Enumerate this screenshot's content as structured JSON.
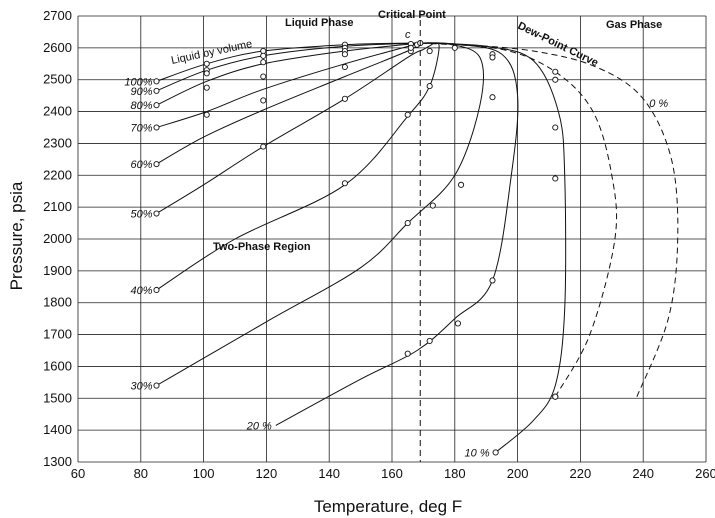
{
  "chart_data": {
    "type": "line",
    "xlabel": "Temperature, deg F",
    "ylabel": "Pressure, psia",
    "xlim": [
      60,
      260
    ],
    "ylim": [
      1300,
      2700
    ],
    "xticks": [
      60,
      80,
      100,
      120,
      140,
      160,
      180,
      200,
      220,
      240,
      260
    ],
    "yticks": [
      1300,
      1400,
      1500,
      1600,
      1700,
      1800,
      1900,
      2000,
      2100,
      2200,
      2300,
      2400,
      2500,
      2600,
      2700
    ],
    "grid": true,
    "critical_point": {
      "label": "c",
      "temperature": 169,
      "pressure": 2615
    },
    "critical_temperature_line": 169,
    "series": [
      {
        "name": "100%",
        "style": "solid",
        "points": [
          [
            85,
            2495
          ],
          [
            101,
            2550
          ],
          [
            119,
            2590
          ],
          [
            145,
            2610
          ],
          [
            165,
            2615
          ],
          [
            169,
            2615
          ]
        ],
        "markers": [
          [
            85,
            2495
          ],
          [
            101,
            2550
          ],
          [
            119,
            2590
          ],
          [
            145,
            2610
          ],
          [
            166,
            2612
          ]
        ]
      },
      {
        "name": "90%",
        "style": "solid",
        "points": [
          [
            85,
            2465
          ],
          [
            101,
            2530
          ],
          [
            119,
            2575
          ],
          [
            145,
            2605
          ],
          [
            169,
            2615
          ]
        ],
        "markers": [
          [
            85,
            2465
          ],
          [
            101,
            2530
          ],
          [
            119,
            2575
          ],
          [
            145,
            2600
          ]
        ]
      },
      {
        "name": "80%",
        "style": "solid",
        "points": [
          [
            85,
            2420
          ],
          [
            101,
            2495
          ],
          [
            119,
            2550
          ],
          [
            145,
            2590
          ],
          [
            169,
            2615
          ]
        ],
        "markers": [
          [
            85,
            2420
          ],
          [
            101,
            2520
          ],
          [
            119,
            2555
          ],
          [
            145,
            2590
          ]
        ]
      },
      {
        "name": "70%",
        "style": "solid",
        "points": [
          [
            85,
            2350
          ],
          [
            101,
            2400
          ],
          [
            119,
            2470
          ],
          [
            145,
            2550
          ],
          [
            169,
            2615
          ]
        ],
        "markers": [
          [
            85,
            2350
          ],
          [
            101,
            2475
          ],
          [
            119,
            2510
          ],
          [
            145,
            2580
          ],
          [
            166,
            2590
          ]
        ]
      },
      {
        "name": "60%",
        "style": "solid",
        "points": [
          [
            85,
            2235
          ],
          [
            100,
            2320
          ],
          [
            119,
            2405
          ],
          [
            145,
            2510
          ],
          [
            165,
            2590
          ],
          [
            169,
            2615
          ]
        ],
        "markers": [
          [
            85,
            2235
          ],
          [
            101,
            2390
          ],
          [
            119,
            2435
          ],
          [
            145,
            2540
          ],
          [
            166,
            2600
          ]
        ]
      },
      {
        "name": "50%",
        "style": "solid",
        "points": [
          [
            85,
            2080
          ],
          [
            100,
            2170
          ],
          [
            119,
            2290
          ],
          [
            145,
            2440
          ],
          [
            165,
            2570
          ],
          [
            170,
            2595
          ],
          [
            173,
            2612
          ]
        ],
        "markers": [
          [
            85,
            2080
          ],
          [
            119,
            2290
          ],
          [
            145,
            2440
          ],
          [
            168,
            2610
          ]
        ]
      },
      {
        "name": "40%",
        "style": "solid",
        "points": [
          [
            85,
            1840
          ],
          [
            110,
            2000
          ],
          [
            145,
            2170
          ],
          [
            165,
            2385
          ],
          [
            172,
            2480
          ],
          [
            175,
            2600
          ],
          [
            173,
            2615
          ],
          [
            169,
            2615
          ]
        ],
        "markers": [
          [
            85,
            1840
          ],
          [
            145,
            2175
          ],
          [
            165,
            2390
          ],
          [
            172,
            2480
          ],
          [
            172,
            2590
          ]
        ]
      },
      {
        "name": "30%",
        "style": "solid",
        "points": [
          [
            85,
            1540
          ],
          [
            120,
            1740
          ],
          [
            150,
            1910
          ],
          [
            165,
            2050
          ],
          [
            180,
            2200
          ],
          [
            188,
            2420
          ],
          [
            188,
            2570
          ],
          [
            178,
            2612
          ],
          [
            169,
            2615
          ]
        ],
        "markers": [
          [
            85,
            1540
          ],
          [
            165,
            2050
          ],
          [
            173,
            2105
          ],
          [
            180,
            2600
          ]
        ]
      },
      {
        "name": "20 %",
        "style": "solid",
        "points": [
          [
            123,
            1415
          ],
          [
            150,
            1560
          ],
          [
            168,
            1650
          ],
          [
            180,
            1750
          ],
          [
            192,
            1870
          ],
          [
            198,
            2200
          ],
          [
            200,
            2450
          ],
          [
            195,
            2580
          ],
          [
            180,
            2612
          ],
          [
            169,
            2615
          ]
        ],
        "markers": [
          [
            165,
            1640
          ],
          [
            172,
            1680
          ],
          [
            181,
            1735
          ],
          [
            182,
            2170
          ],
          [
            192,
            1870
          ],
          [
            192,
            2445
          ],
          [
            192,
            2580
          ]
        ]
      },
      {
        "name": "10 %",
        "style": "solid",
        "points": [
          [
            193,
            1330
          ],
          [
            205,
            1430
          ],
          [
            212,
            1540
          ],
          [
            215,
            1780
          ],
          [
            215,
            2200
          ],
          [
            213,
            2400
          ],
          [
            205,
            2560
          ],
          [
            190,
            2605
          ],
          [
            169,
            2615
          ]
        ],
        "markers": [
          [
            193,
            1330
          ],
          [
            212,
            1505
          ],
          [
            212,
            2190
          ],
          [
            212,
            2350
          ],
          [
            192,
            2570
          ]
        ]
      },
      {
        "name": "0 %",
        "style": "dashed",
        "points": [
          [
            212,
            1505
          ],
          [
            223,
            1700
          ],
          [
            231,
            2000
          ],
          [
            230,
            2200
          ],
          [
            224,
            2400
          ],
          [
            212,
            2525
          ],
          [
            195,
            2595
          ],
          [
            169,
            2615
          ]
        ],
        "markers": [
          [
            212,
            1505
          ],
          [
            212,
            2525
          ],
          [
            212,
            2500
          ]
        ]
      },
      {
        "name": "Dew-Point Curve",
        "style": "dashed",
        "points": [
          [
            238,
            1505
          ],
          [
            248,
            1750
          ],
          [
            251,
            2000
          ],
          [
            249,
            2250
          ],
          [
            240,
            2440
          ],
          [
            225,
            2540
          ],
          [
            205,
            2590
          ],
          [
            180,
            2612
          ],
          [
            169,
            2615
          ]
        ],
        "markers": []
      }
    ],
    "annotations": {
      "liquid_phase": "Liquid Phase",
      "critical_point": "Critical Point",
      "gas_phase": "Gas Phase",
      "dew_point_curve": "Dew-Point Curve",
      "two_phase_region": "Two-Phase Region",
      "liquid_by_volume": "Liquid by volume",
      "critical_label": "c"
    }
  }
}
